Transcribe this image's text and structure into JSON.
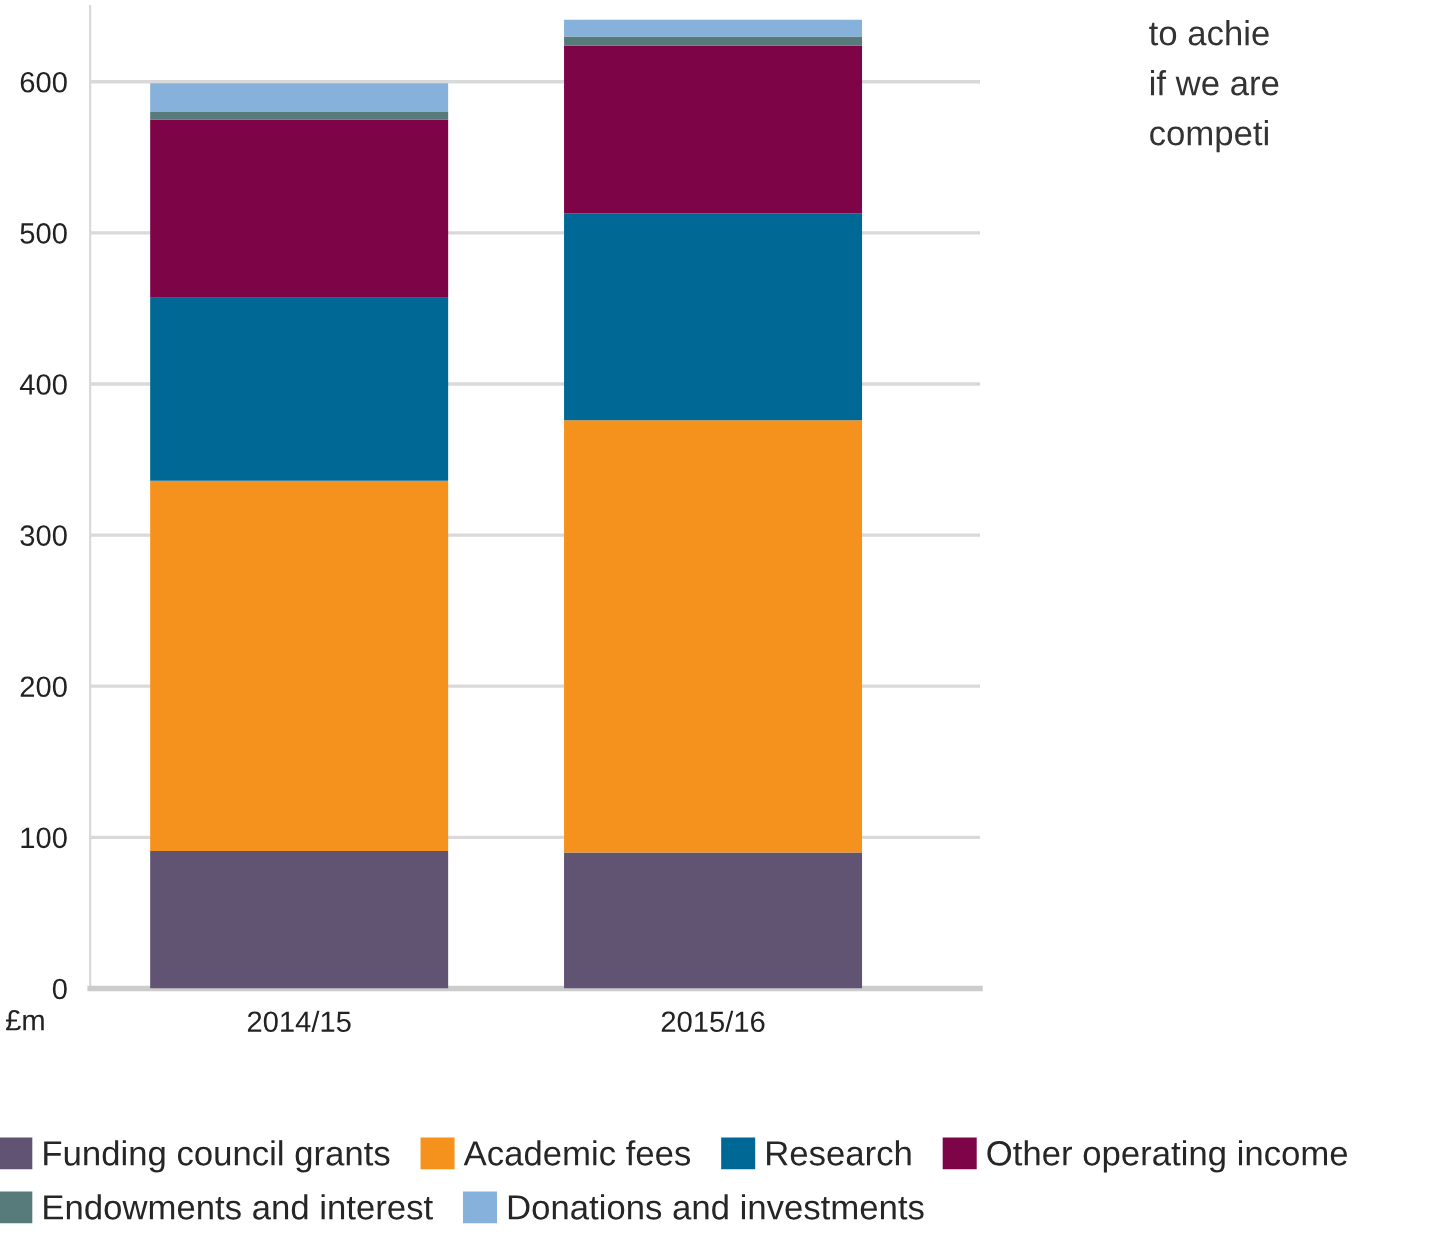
{
  "chart_data": {
    "type": "bar",
    "stacked": true,
    "ylabel": "£m",
    "categories": [
      "2014/15",
      "2015/16"
    ],
    "series": [
      {
        "name": "Funding council grants",
        "color": "#615372",
        "values": [
          91,
          90
        ]
      },
      {
        "name": "Academic fees",
        "color": "#f5921e",
        "values": [
          245,
          286
        ]
      },
      {
        "name": "Research",
        "color": "#006894",
        "values": [
          121,
          137
        ]
      },
      {
        "name": "Other operating income",
        "color": "#7d0447",
        "values": [
          118,
          111
        ]
      },
      {
        "name": "Endowments and interest",
        "color": "#577a7a",
        "values": [
          5,
          6
        ]
      },
      {
        "name": "Donations and investments",
        "color": "#86b1da",
        "values": [
          19,
          11
        ]
      }
    ],
    "ylim": [
      0,
      650
    ],
    "yticks": [
      0,
      100,
      200,
      300,
      400,
      500,
      600
    ],
    "grid": "y",
    "legend": "bottom",
    "annotations": [
      "to achie",
      "if we are",
      "competi"
    ]
  }
}
